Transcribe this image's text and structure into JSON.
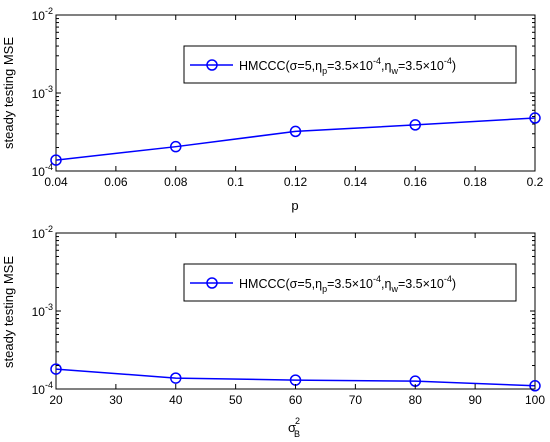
{
  "chart_data": [
    {
      "type": "line",
      "xlabel": "p",
      "ylabel": "steady testing MSE",
      "xlim": [
        0.04,
        0.2
      ],
      "ylim": [
        0.0001,
        0.01
      ],
      "yscale": "log",
      "x_ticks": [
        "0.04",
        "0.06",
        "0.08",
        "0.1",
        "0.12",
        "0.14",
        "0.16",
        "0.18",
        "0.2"
      ],
      "y_ticks": [
        {
          "base": "10",
          "exp": "-4"
        },
        {
          "base": "10",
          "exp": "-3"
        },
        {
          "base": "10",
          "exp": "-2"
        }
      ],
      "grid": false,
      "legend": "top-right",
      "color": "#0000FF",
      "marker": "circle",
      "series": [
        {
          "name": "HMCCC(σ=5,η_p=3.5×10^-4,η_w=3.5×10^-4)",
          "x": [
            0.04,
            0.08,
            0.12,
            0.16,
            0.2
          ],
          "y": [
            0.000138,
            0.000205,
            0.000322,
            0.00039,
            0.000478
          ]
        }
      ]
    },
    {
      "type": "line",
      "xlabel": "σ_B^2",
      "ylabel": "steady testing MSE",
      "xlim": [
        20,
        100
      ],
      "ylim": [
        0.0001,
        0.01
      ],
      "yscale": "log",
      "x_ticks": [
        "20",
        "30",
        "40",
        "50",
        "60",
        "70",
        "80",
        "90",
        "100"
      ],
      "y_ticks": [
        {
          "base": "10",
          "exp": "-4"
        },
        {
          "base": "10",
          "exp": "-3"
        },
        {
          "base": "10",
          "exp": "-2"
        }
      ],
      "grid": false,
      "legend": "top-right",
      "color": "#0000FF",
      "marker": "circle",
      "series": [
        {
          "name": "HMCCC(σ=5,η_p=3.5×10^-4,η_w=3.5×10^-4)",
          "x": [
            20,
            40,
            60,
            80,
            100
          ],
          "y": [
            0.00018,
            0.000138,
            0.00013,
            0.000126,
            0.00011
          ]
        }
      ]
    }
  ],
  "legend_parts": {
    "prefix": "HMCCC(σ=5,η",
    "sub_p": "p",
    "mid1": "=3.5×10",
    "exp1": "-4",
    "mid2": ",η",
    "sub_w": "w",
    "mid3": "=3.5×10",
    "exp2": "-4",
    "suffix": ")"
  },
  "xlabel2_parts": {
    "base": "σ",
    "sup": "2",
    "sub": "B"
  }
}
